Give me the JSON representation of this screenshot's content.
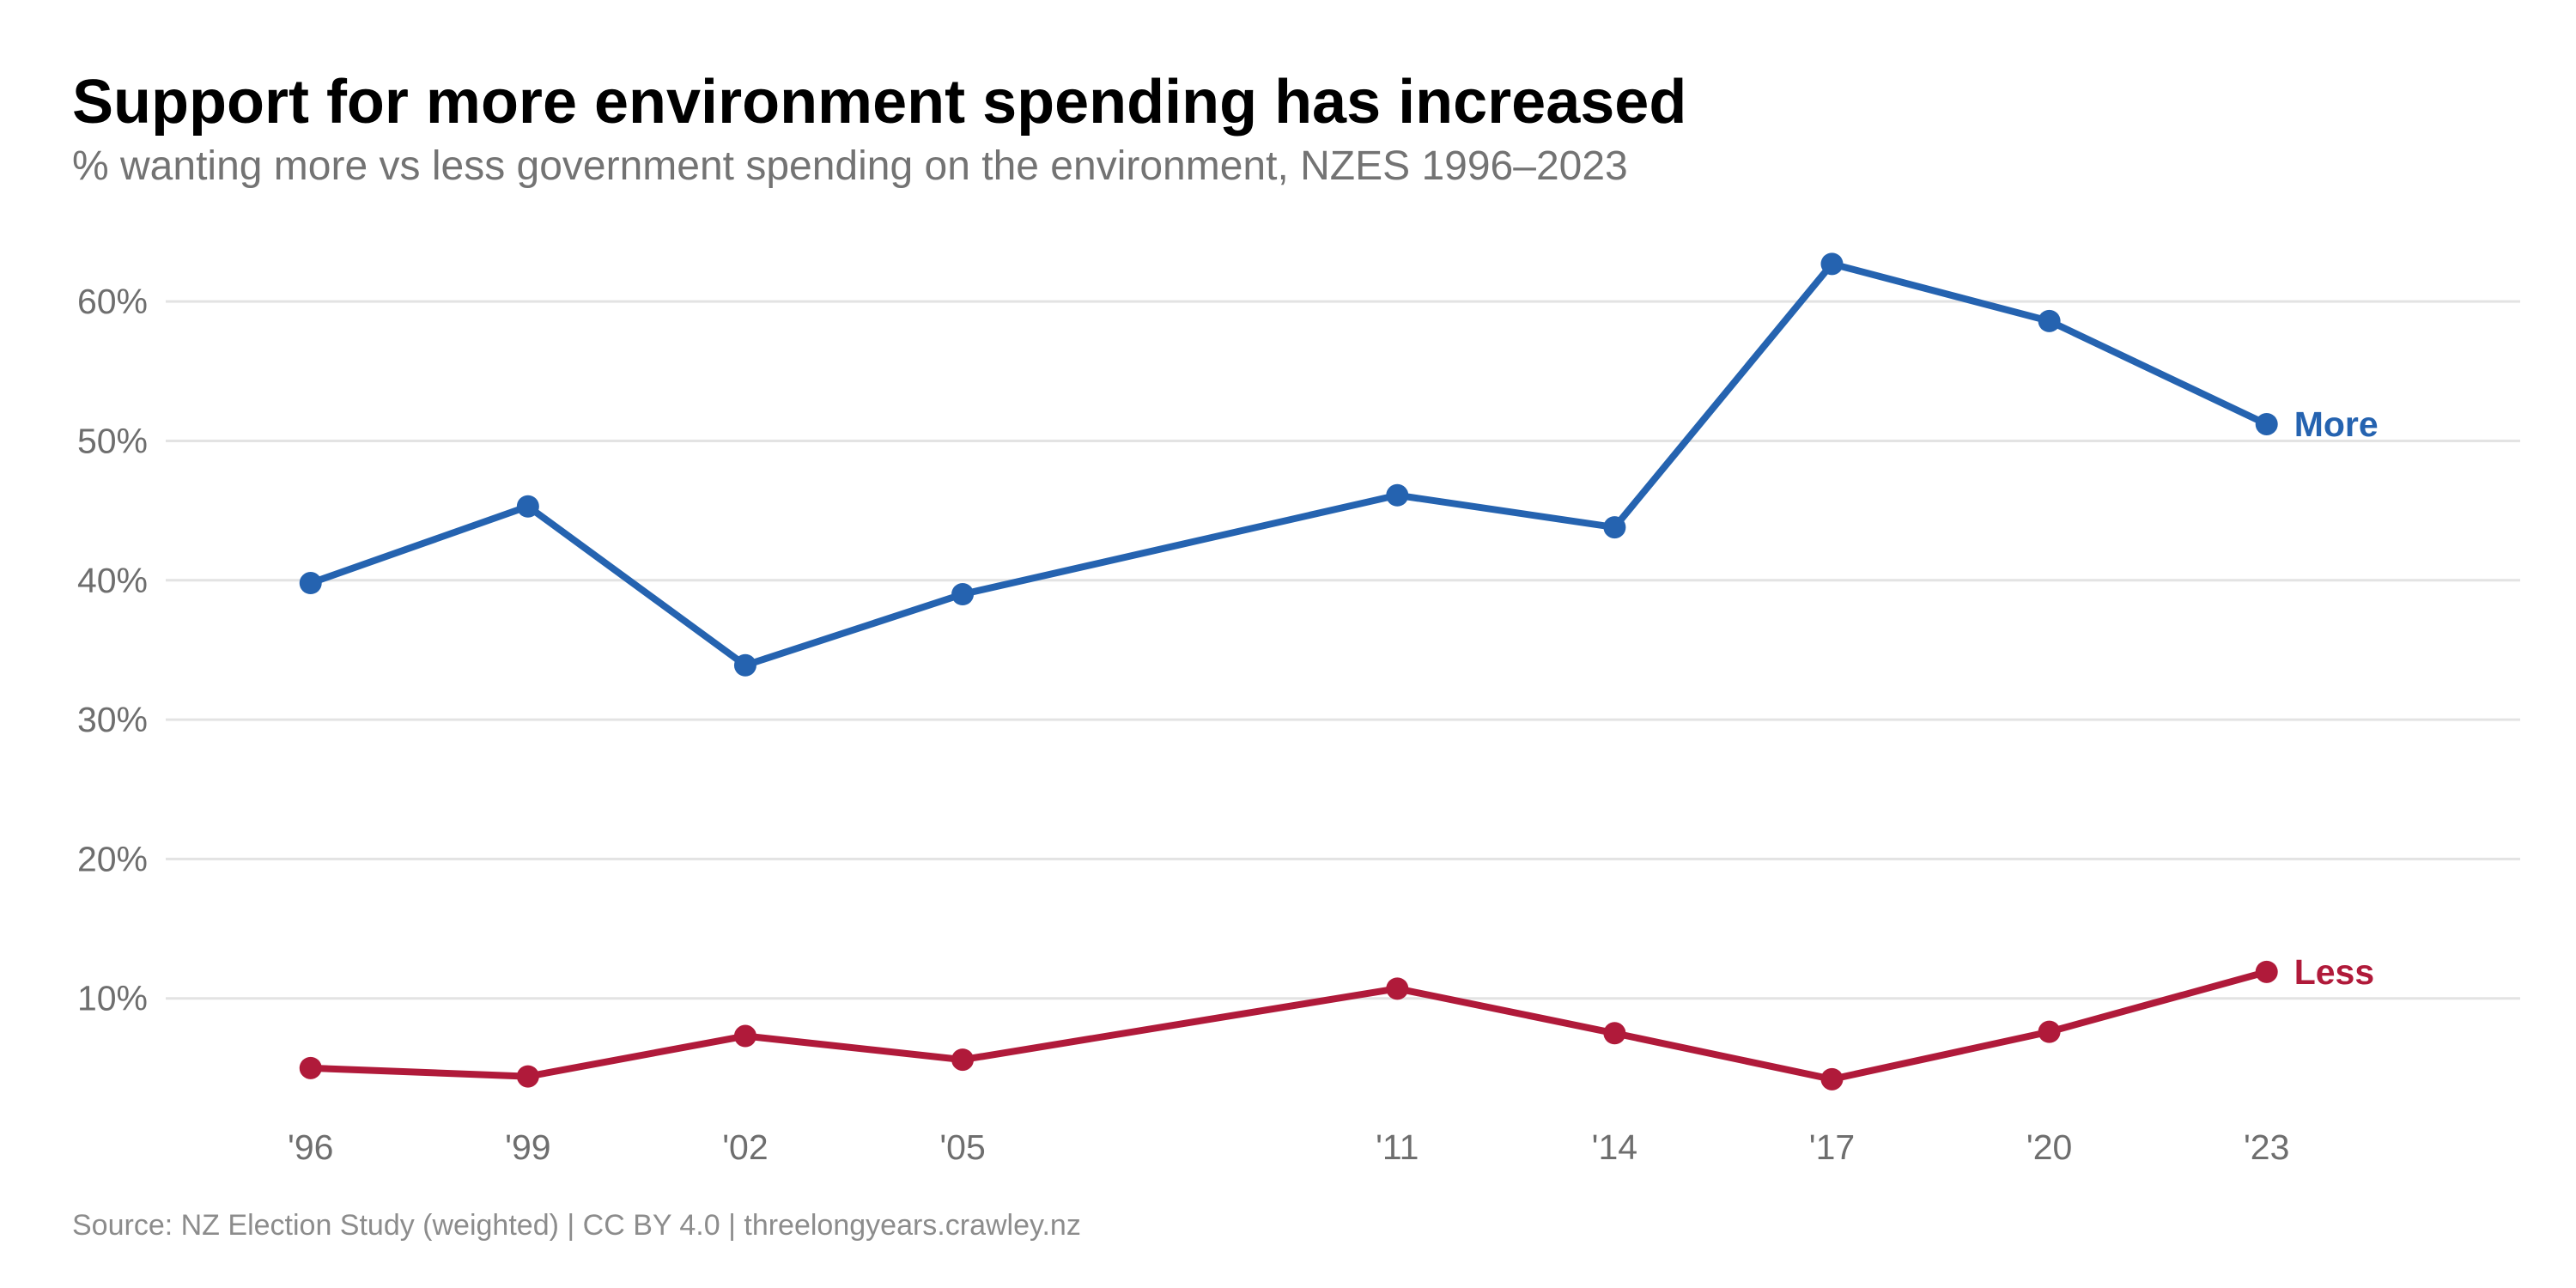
{
  "chart_data": {
    "type": "line",
    "title": "Support for more environment spending has increased",
    "subtitle": "% wanting more vs less government spending on the environment, NZES 1996–2023",
    "caption": "Source: NZ Election Study (weighted) | CC BY 4.0 | threelongyears.crawley.nz",
    "x": [
      1996,
      1999,
      2002,
      2005,
      2011,
      2014,
      2017,
      2020,
      2023
    ],
    "x_tick_labels": [
      "'96",
      "'99",
      "'02",
      "'05",
      "'11",
      "'14",
      "'17",
      "'20",
      "'23"
    ],
    "xlim": [
      1994,
      2026.5
    ],
    "y_ticks": [
      10,
      20,
      30,
      40,
      50,
      60
    ],
    "y_tick_labels": [
      "10%",
      "20%",
      "30%",
      "40%",
      "50%",
      "60%"
    ],
    "ylim": [
      0,
      65
    ],
    "grid": "horizontal",
    "legend": "direct labels at line ends",
    "series": [
      {
        "name": "More",
        "color": "#2563b0",
        "values": [
          39.8,
          45.3,
          33.9,
          39.0,
          46.1,
          43.8,
          62.7,
          58.6,
          51.2
        ]
      },
      {
        "name": "Less",
        "color": "#b01a3a",
        "values": [
          5.0,
          4.4,
          7.3,
          5.6,
          10.7,
          7.5,
          4.2,
          7.6,
          11.9
        ]
      }
    ]
  }
}
